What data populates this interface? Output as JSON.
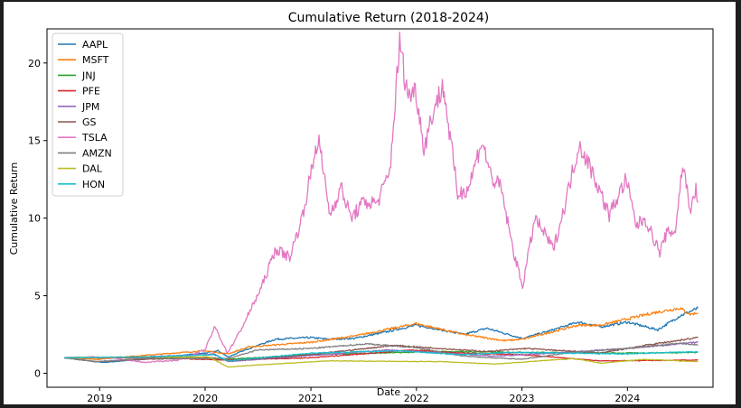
{
  "chart_data": {
    "type": "line",
    "title": "Cumulative Return (2018-2024)",
    "xlabel": "Date",
    "ylabel": "Cumulative Return",
    "x_ticks": [
      "2019",
      "2020",
      "2021",
      "2022",
      "2023",
      "2024"
    ],
    "y_ticks": [
      "0",
      "5",
      "10",
      "15",
      "20"
    ],
    "xlim": [
      "2018-07-03",
      "2024-10-23"
    ],
    "ylim": [
      -0.9,
      22.2
    ],
    "grid": false,
    "legend_position": "upper-left",
    "series": [
      {
        "name": "AAPL",
        "color": "#1f77b4",
        "x": [
          "2018-09-01",
          "2018-12-15",
          "2019-01-15",
          "2019-06-01",
          "2019-12-31",
          "2020-02-15",
          "2020-03-20",
          "2020-06-01",
          "2020-09-01",
          "2020-12-31",
          "2021-03-01",
          "2021-06-01",
          "2021-09-01",
          "2021-12-31",
          "2022-03-01",
          "2022-06-15",
          "2022-09-01",
          "2023-01-03",
          "2023-04-01",
          "2023-07-15",
          "2023-10-01",
          "2024-01-01",
          "2024-04-15",
          "2024-07-01",
          "2024-09-01"
        ],
        "y": [
          1.0,
          0.75,
          0.7,
          0.9,
          1.3,
          1.45,
          1.05,
          1.6,
          2.2,
          2.3,
          2.2,
          2.25,
          2.6,
          3.1,
          2.9,
          2.5,
          2.9,
          2.25,
          2.7,
          3.3,
          3.0,
          3.3,
          2.8,
          3.7,
          4.2
        ]
      },
      {
        "name": "MSFT",
        "color": "#ff7f0e",
        "x": [
          "2018-09-01",
          "2018-12-24",
          "2019-06-01",
          "2019-12-31",
          "2020-03-20",
          "2020-06-01",
          "2020-12-31",
          "2021-06-01",
          "2021-12-31",
          "2022-06-15",
          "2022-11-01",
          "2023-01-05",
          "2023-07-15",
          "2023-10-01",
          "2024-01-01",
          "2024-04-01",
          "2024-07-01",
          "2024-08-05",
          "2024-09-01"
        ],
        "y": [
          1.0,
          0.9,
          1.15,
          1.45,
          1.25,
          1.7,
          2.0,
          2.4,
          3.2,
          2.5,
          2.1,
          2.2,
          3.1,
          3.1,
          3.5,
          3.9,
          4.2,
          3.8,
          3.9
        ]
      },
      {
        "name": "JNJ",
        "color": "#2ca02c",
        "x": [
          "2018-09-01",
          "2019-06-01",
          "2020-03-20",
          "2021-01-01",
          "2022-04-01",
          "2023-01-01",
          "2024-01-01",
          "2024-09-01"
        ],
        "y": [
          1.0,
          1.05,
          0.9,
          1.2,
          1.4,
          1.35,
          1.3,
          1.35
        ]
      },
      {
        "name": "PFE",
        "color": "#d62728",
        "x": [
          "2018-09-01",
          "2019-06-01",
          "2020-03-20",
          "2021-01-01",
          "2021-12-15",
          "2022-06-01",
          "2023-01-01",
          "2023-10-01",
          "2024-09-01"
        ],
        "y": [
          1.0,
          1.0,
          0.85,
          1.0,
          1.5,
          1.3,
          1.2,
          0.8,
          0.85
        ]
      },
      {
        "name": "JPM",
        "color": "#9467bd",
        "x": [
          "2018-09-01",
          "2019-06-01",
          "2020-02-01",
          "2020-03-20",
          "2021-01-01",
          "2021-10-01",
          "2022-10-01",
          "2023-03-01",
          "2024-01-01",
          "2024-09-01"
        ],
        "y": [
          1.0,
          1.05,
          1.25,
          0.75,
          1.15,
          1.5,
          1.1,
          1.25,
          1.6,
          2.0
        ]
      },
      {
        "name": "GS",
        "color": "#8c564b",
        "x": [
          "2018-09-01",
          "2018-12-24",
          "2019-06-01",
          "2020-02-01",
          "2020-03-20",
          "2021-01-01",
          "2021-10-15",
          "2022-09-01",
          "2023-01-15",
          "2023-10-01",
          "2024-03-01",
          "2024-09-01"
        ],
        "y": [
          1.0,
          0.75,
          0.9,
          1.0,
          0.8,
          1.2,
          1.8,
          1.4,
          1.6,
          1.3,
          1.8,
          2.3
        ]
      },
      {
        "name": "TSLA",
        "color": "#e377c2",
        "x": [
          "2018-09-01",
          "2018-12-01",
          "2019-03-01",
          "2019-06-03",
          "2019-10-01",
          "2019-12-31",
          "2020-02-04",
          "2020-03-18",
          "2020-05-01",
          "2020-07-13",
          "2020-09-01",
          "2020-10-20",
          "2020-12-01",
          "2021-01-26",
          "2021-03-08",
          "2021-04-15",
          "2021-05-20",
          "2021-07-01",
          "2021-08-19",
          "2021-10-01",
          "2021-11-04",
          "2021-12-01",
          "2021-12-31",
          "2022-01-27",
          "2022-03-01",
          "2022-04-04",
          "2022-05-24",
          "2022-07-01",
          "2022-08-15",
          "2022-09-20",
          "2022-10-20",
          "2022-12-01",
          "2023-01-03",
          "2023-02-15",
          "2023-03-20",
          "2023-04-20",
          "2023-05-25",
          "2023-07-18",
          "2023-09-01",
          "2023-10-30",
          "2023-12-27",
          "2024-02-01",
          "2024-03-01",
          "2024-04-22",
          "2024-05-15",
          "2024-06-15",
          "2024-07-10",
          "2024-08-07",
          "2024-08-25",
          "2024-09-01"
        ],
        "y": [
          1.0,
          1.05,
          0.95,
          0.7,
          0.85,
          1.5,
          3.0,
          1.3,
          2.7,
          5.5,
          8.0,
          7.5,
          10.0,
          15.2,
          10.2,
          12.0,
          10.0,
          11.0,
          11.0,
          13.0,
          21.3,
          18.0,
          18.2,
          14.5,
          17.0,
          18.5,
          11.5,
          12.0,
          15.0,
          12.5,
          12.0,
          8.0,
          5.6,
          10.0,
          9.0,
          8.0,
          10.5,
          14.8,
          13.0,
          10.2,
          12.5,
          9.5,
          10.0,
          7.8,
          9.0,
          9.2,
          13.5,
          10.5,
          11.8,
          11.0
        ]
      },
      {
        "name": "AMZN",
        "color": "#7f7f7f",
        "x": [
          "2018-09-01",
          "2018-12-24",
          "2019-06-01",
          "2020-03-20",
          "2020-07-01",
          "2020-12-31",
          "2021-07-15",
          "2022-01-01",
          "2022-06-15",
          "2022-12-31",
          "2023-06-01",
          "2024-01-01",
          "2024-07-01",
          "2024-09-01"
        ],
        "y": [
          1.0,
          0.75,
          0.95,
          0.95,
          1.5,
          1.6,
          1.9,
          1.65,
          1.1,
          0.9,
          1.3,
          1.6,
          1.95,
          1.8
        ]
      },
      {
        "name": "DAL",
        "color": "#bcbd22",
        "x": [
          "2018-09-01",
          "2019-06-01",
          "2020-01-15",
          "2020-03-20",
          "2020-06-01",
          "2021-03-01",
          "2022-04-01",
          "2022-10-01",
          "2023-07-01",
          "2023-10-01",
          "2024-03-01",
          "2024-09-01"
        ],
        "y": [
          1.0,
          1.05,
          1.05,
          0.4,
          0.5,
          0.8,
          0.75,
          0.6,
          0.95,
          0.65,
          0.9,
          0.75
        ]
      },
      {
        "name": "HON",
        "color": "#17becf",
        "x": [
          "2018-09-01",
          "2019-06-01",
          "2020-02-01",
          "2020-03-20",
          "2021-01-01",
          "2021-11-01",
          "2022-06-01",
          "2022-12-01",
          "2023-06-01",
          "2024-01-01",
          "2024-09-01"
        ],
        "y": [
          1.0,
          1.05,
          1.2,
          0.8,
          1.3,
          1.45,
          1.2,
          1.35,
          1.3,
          1.25,
          1.4
        ]
      }
    ]
  }
}
